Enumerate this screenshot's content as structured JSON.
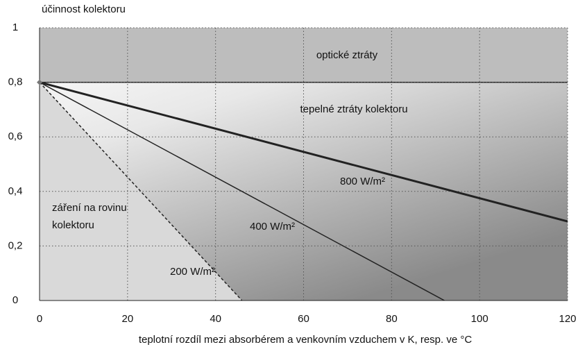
{
  "chart_data": {
    "type": "line",
    "y_label": "účinnost kolektoru",
    "x_label": "teplotní rozdíl mezi absorbérem a venkovním vzduchem v K, resp. ve °C",
    "xlim": [
      0,
      120
    ],
    "ylim": [
      0,
      1
    ],
    "xticks": [
      0,
      20,
      40,
      60,
      80,
      100,
      120
    ],
    "yticks": [
      0,
      {
        "value": 0.2,
        "label": "0,2"
      },
      {
        "value": 0.4,
        "label": "0,4"
      },
      {
        "value": 0.6,
        "label": "0,6"
      },
      {
        "value": 0.8,
        "label": "0,8"
      },
      1
    ],
    "grid": true,
    "series": [
      {
        "name": "800 W/m²",
        "color": "#222222",
        "line_width": 3,
        "dash": false,
        "x": [
          0,
          120
        ],
        "values": [
          0.8,
          0.29
        ]
      },
      {
        "name": "400 W/m²",
        "color": "#222222",
        "line_width": 1.5,
        "dash": false,
        "x": [
          0,
          92
        ],
        "values": [
          0.8,
          0
        ]
      },
      {
        "name": "200 W/m²",
        "color": "#222222",
        "line_width": 1.5,
        "dash": true,
        "x": [
          0,
          46
        ],
        "values": [
          0.8,
          0
        ]
      }
    ],
    "annotations": [
      "optické ztráty",
      "tepelné ztráty kolektoru",
      "záření na rovinu",
      "kolektoru"
    ]
  }
}
